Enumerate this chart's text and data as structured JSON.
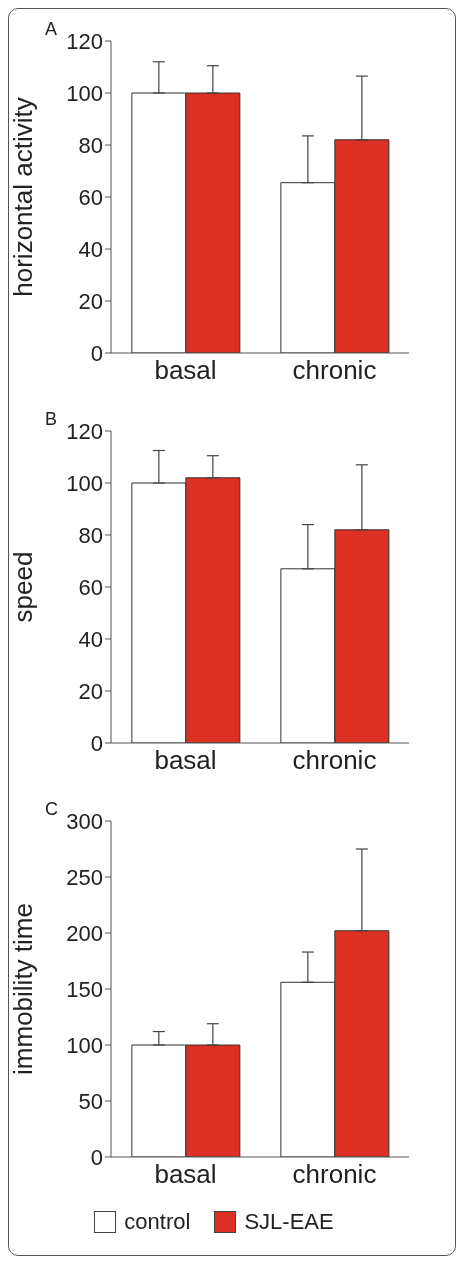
{
  "chart_data": [
    {
      "type": "bar",
      "title": "A",
      "ylabel": "horizontal activity",
      "categories": [
        "basal",
        "chronic"
      ],
      "ylim": [
        0,
        120
      ],
      "yticks": [
        0,
        20,
        40,
        60,
        80,
        100,
        120
      ],
      "legend": false,
      "series": [
        {
          "color": "#ffffff",
          "values": [
            100,
            65.5
          ],
          "errors": [
            [
              100,
              112
            ],
            [
              65.5,
              83.5
            ]
          ]
        },
        {
          "color": "#dd3024",
          "values": [
            100,
            82
          ],
          "errors": [
            [
              100,
              110.5
            ],
            [
              82,
              106.5
            ]
          ]
        }
      ]
    },
    {
      "type": "bar",
      "title": "B",
      "ylabel": "speed",
      "categories": [
        "basal",
        "chronic"
      ],
      "ylim": [
        0,
        120
      ],
      "yticks": [
        0,
        20,
        40,
        60,
        80,
        100,
        120
      ],
      "legend": false,
      "series": [
        {
          "color": "#ffffff",
          "values": [
            100,
            67
          ],
          "errors": [
            [
              100,
              112.5
            ],
            [
              67,
              84
            ]
          ]
        },
        {
          "color": "#dd3024",
          "values": [
            102,
            82
          ],
          "errors": [
            [
              102,
              110.5
            ],
            [
              82,
              107
            ]
          ]
        }
      ]
    },
    {
      "type": "bar",
      "title": "C",
      "ylabel": "immobility time",
      "categories": [
        "basal",
        "chronic"
      ],
      "ylim": [
        0,
        300
      ],
      "yticks": [
        0,
        50,
        100,
        150,
        200,
        250,
        300
      ],
      "legend": "bottom",
      "series": [
        {
          "name": "control",
          "color": "#ffffff",
          "values": [
            100,
            156
          ],
          "errors": [
            [
              100,
              112
            ],
            [
              156,
              183
            ]
          ]
        },
        {
          "name": "SJL-EAE",
          "color": "#dd3024",
          "values": [
            100,
            202
          ],
          "errors": [
            [
              100,
              119
            ],
            [
              202,
              275
            ]
          ]
        }
      ]
    }
  ]
}
